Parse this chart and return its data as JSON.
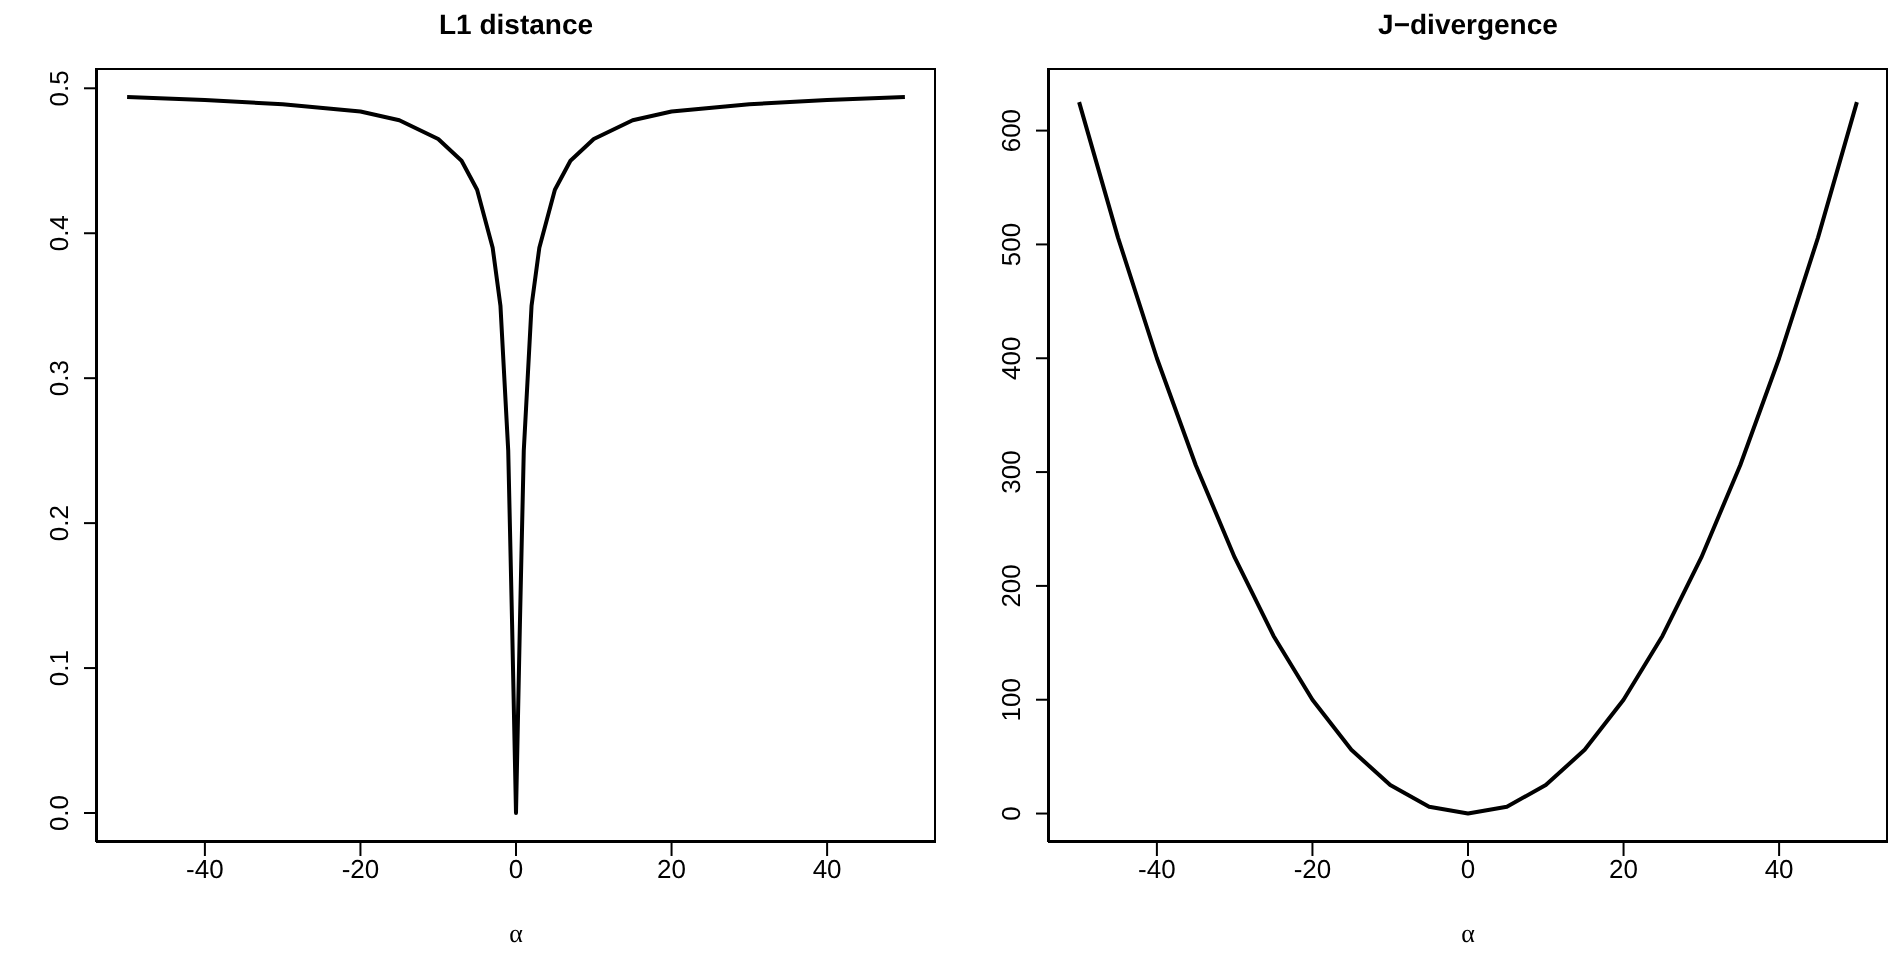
{
  "chart_data": [
    {
      "type": "line",
      "title": "L1 distance",
      "xlabel": "α",
      "x": [
        -50,
        -40,
        -30,
        -20,
        -15,
        -10,
        -7,
        -5,
        -4,
        -3,
        -2,
        -1.5,
        -1,
        -0.5,
        0,
        0.5,
        1,
        1.5,
        2,
        3,
        4,
        5,
        7,
        10,
        15,
        20,
        30,
        40,
        50
      ],
      "series": [
        {
          "color": "#000000",
          "values": [
            0.494,
            0.492,
            0.489,
            0.484,
            0.478,
            0.465,
            0.45,
            0.43,
            0.41,
            0.39,
            0.35,
            0.3,
            0.25,
            0.13,
            0,
            0.13,
            0.25,
            0.3,
            0.35,
            0.39,
            0.41,
            0.43,
            0.45,
            0.465,
            0.478,
            0.484,
            0.489,
            0.492,
            0.494
          ]
        }
      ],
      "xlim": [
        -54,
        54
      ],
      "ylim": [
        -0.02,
        0.514
      ],
      "xticks": [
        -40,
        -20,
        0,
        20,
        40
      ],
      "yticks": [
        {
          "value": 0,
          "label": "0.0"
        },
        {
          "value": 0.1,
          "label": "0.1"
        },
        {
          "value": 0.2,
          "label": "0.2"
        },
        {
          "value": 0.3,
          "label": "0.3"
        },
        {
          "value": 0.4,
          "label": "0.4"
        },
        {
          "value": 0.5,
          "label": "0.5"
        }
      ]
    },
    {
      "type": "line",
      "title": "J−divergence",
      "xlabel": "α",
      "x": [
        -50,
        -45,
        -40,
        -35,
        -30,
        -25,
        -20,
        -15,
        -10,
        -5,
        0,
        5,
        10,
        15,
        20,
        25,
        30,
        35,
        40,
        45,
        50
      ],
      "series": [
        {
          "color": "#000000",
          "values": [
            625,
            506,
            400,
            306,
            225,
            156,
            100,
            56,
            25,
            6,
            0,
            6,
            25,
            56,
            100,
            156,
            225,
            306,
            400,
            506,
            625
          ]
        }
      ],
      "xlim": [
        -54,
        54
      ],
      "ylim": [
        -25,
        655
      ],
      "xticks": [
        -40,
        -20,
        0,
        20,
        40
      ],
      "yticks": [
        0,
        100,
        200,
        300,
        400,
        500,
        600
      ]
    }
  ]
}
